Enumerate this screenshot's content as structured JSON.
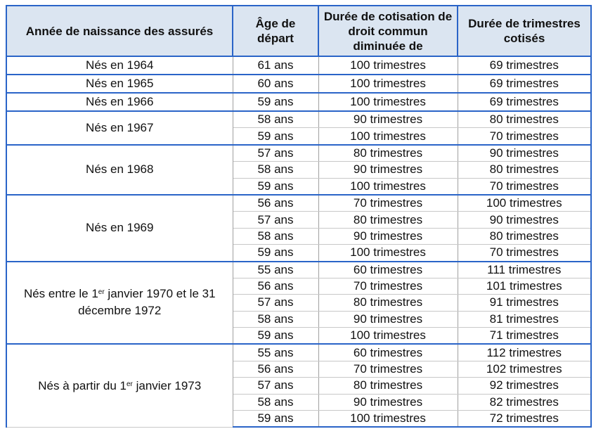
{
  "headers": [
    "Année de naissance des assurés",
    "Âge de départ",
    "Durée de cotisation de droit commun diminuée de",
    "Durée de trimestres cotisés"
  ],
  "groups": [
    {
      "year": "Nés en 1964",
      "rows": [
        [
          "61 ans",
          "100 trimestres",
          "69 trimestres"
        ]
      ]
    },
    {
      "year": "Nés en 1965",
      "rows": [
        [
          "60 ans",
          "100 trimestres",
          "69 trimestres"
        ]
      ]
    },
    {
      "year": "Nés en 1966",
      "rows": [
        [
          "59 ans",
          "100 trimestres",
          "69 trimestres"
        ]
      ]
    },
    {
      "year": "Nés en 1967",
      "rows": [
        [
          "58 ans",
          "90 trimestres",
          "80 trimestres"
        ],
        [
          "59 ans",
          "100 trimestres",
          "70 trimestres"
        ]
      ]
    },
    {
      "year": "Nés en 1968",
      "rows": [
        [
          "57 ans",
          "80 trimestres",
          "90 trimestres"
        ],
        [
          "58 ans",
          "90 trimestres",
          "80 trimestres"
        ],
        [
          "59 ans",
          "100 trimestres",
          "70 trimestres"
        ]
      ]
    },
    {
      "year": "Nés en 1969",
      "rows": [
        [
          "56 ans",
          "70 trimestres",
          "100 trimestres"
        ],
        [
          "57 ans",
          "80 trimestres",
          "90 trimestres"
        ],
        [
          "58 ans",
          "90 trimestres",
          "80 trimestres"
        ],
        [
          "59 ans",
          "100 trimestres",
          "70 trimestres"
        ]
      ]
    },
    {
      "year_parts": [
        "Nés entre le 1",
        "er",
        " janvier 1970 et le 31 décembre 1972"
      ],
      "rows": [
        [
          "55 ans",
          "60 trimestres",
          "111 trimestres"
        ],
        [
          "56 ans",
          "70 trimestres",
          "101 trimestres"
        ],
        [
          "57 ans",
          "80 trimestres",
          "91 trimestres"
        ],
        [
          "58 ans",
          "90 trimestres",
          "81 trimestres"
        ],
        [
          "59 ans",
          "100 trimestres",
          "71 trimestres"
        ]
      ]
    },
    {
      "year_parts": [
        "Nés à partir du 1",
        "er",
        " janvier 1973"
      ],
      "rows": [
        [
          "55 ans",
          "60 trimestres",
          "112 trimestres"
        ],
        [
          "56 ans",
          "70 trimestres",
          "102 trimestres"
        ],
        [
          "57 ans",
          "80 trimestres",
          "92 trimestres"
        ],
        [
          "58 ans",
          "90 trimestres",
          "82 trimestres"
        ],
        [
          "59 ans",
          "100 trimestres",
          "72 trimestres"
        ]
      ]
    }
  ],
  "colors": {
    "border": "#2a64c8",
    "header_bg": "#dbe5f1",
    "grid": "#a0a0a0"
  }
}
